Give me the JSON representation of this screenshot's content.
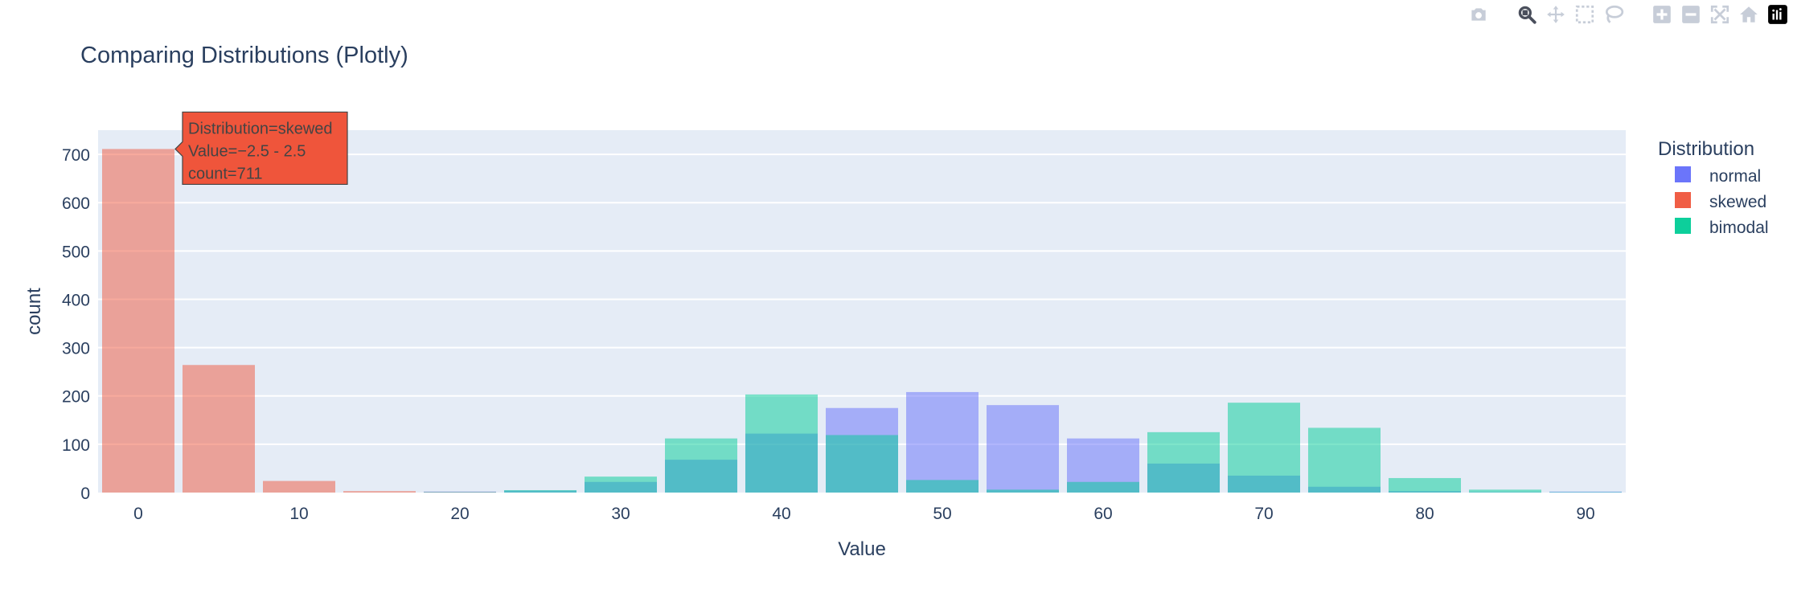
{
  "chart_data": {
    "type": "histogram",
    "title": "Comparing Distributions (Plotly)",
    "xlabel": "Value",
    "ylabel": "count",
    "xlim": [
      -2.5,
      92.5
    ],
    "ylim": [
      0,
      750
    ],
    "x_ticks": [
      0,
      10,
      20,
      30,
      40,
      50,
      60,
      70,
      80,
      90
    ],
    "y_ticks": [
      0,
      100,
      200,
      300,
      400,
      500,
      600,
      700
    ],
    "barmode": "overlay",
    "bin_size": 5,
    "bin_starts": [
      -2.5,
      2.5,
      7.5,
      12.5,
      17.5,
      22.5,
      27.5,
      32.5,
      37.5,
      42.5,
      47.5,
      52.5,
      57.5,
      62.5,
      67.5,
      72.5,
      77.5,
      82.5,
      87.5
    ],
    "legend_title": "Distribution",
    "legend_position": "right",
    "grid": true,
    "series": [
      {
        "name": "normal",
        "color": "#636efa",
        "values": [
          0,
          0,
          0,
          0,
          2,
          4,
          22,
          68,
          122,
          175,
          208,
          181,
          112,
          60,
          35,
          12,
          3,
          1,
          2
        ]
      },
      {
        "name": "skewed",
        "color": "#ef553b",
        "values": [
          711,
          264,
          24,
          3,
          1,
          0,
          0,
          0,
          0,
          0,
          0,
          0,
          0,
          0,
          0,
          0,
          0,
          0,
          0
        ]
      },
      {
        "name": "bimodal",
        "color": "#00cc96",
        "values": [
          0,
          0,
          0,
          0,
          1,
          5,
          33,
          112,
          203,
          119,
          26,
          6,
          22,
          125,
          186,
          134,
          30,
          6,
          1
        ]
      }
    ],
    "tooltip": {
      "series": "skewed",
      "line1": "Distribution=skewed",
      "line2": "Value=−2.5 - 2.5",
      "line3": "count=711"
    }
  },
  "modebar": {
    "buttons": [
      "camera-icon",
      "zoom-icon",
      "pan-icon",
      "box-select-icon",
      "lasso-icon",
      "zoom-in-icon",
      "zoom-out-icon",
      "autoscale-icon",
      "reset-axes-icon",
      "plotly-logo-icon"
    ]
  }
}
